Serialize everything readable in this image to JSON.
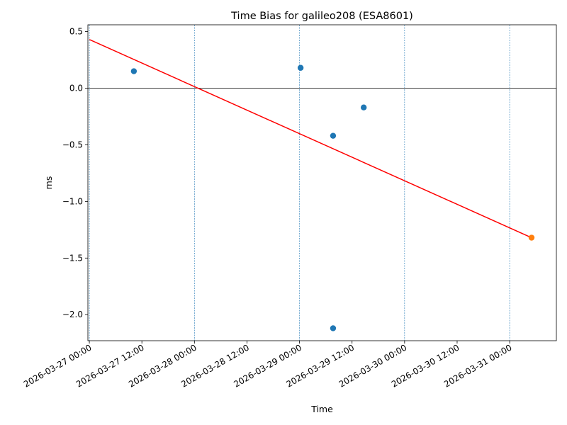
{
  "chart_data": {
    "type": "scatter",
    "title": "Time Bias for galileo208 (ESA8601)",
    "xlabel": "Time",
    "ylabel": "ms",
    "xlim": [
      "2026-03-26 23:40",
      "2026-03-31 10:40"
    ],
    "ylim": [
      -2.23,
      0.56
    ],
    "x_ticks": [
      "2026-03-27 00:00",
      "2026-03-27 12:00",
      "2026-03-28 00:00",
      "2026-03-28 12:00",
      "2026-03-29 00:00",
      "2026-03-29 12:00",
      "2026-03-30 00:00",
      "2026-03-30 12:00",
      "2026-03-31 00:00"
    ],
    "y_ticks": [
      0.5,
      0.0,
      -0.5,
      -1.0,
      -1.5,
      -2.0
    ],
    "y_tick_labels": [
      "0.5",
      "0.0",
      "−0.5",
      "−1.0",
      "−1.5",
      "−2.0"
    ],
    "day_lines": [
      "2026-03-27 00:00",
      "2026-03-28 00:00",
      "2026-03-29 00:00",
      "2026-03-30 00:00",
      "2026-03-31 00:00"
    ],
    "zero_line": 0,
    "series": [
      {
        "type": "scatter",
        "color": "#1f77b4",
        "points": [
          {
            "x": "2026-03-27 10:10",
            "y": 0.15
          },
          {
            "x": "2026-03-29 00:15",
            "y": 0.18
          },
          {
            "x": "2026-03-29 07:40",
            "y": -0.42
          },
          {
            "x": "2026-03-29 07:40",
            "y": -2.12
          },
          {
            "x": "2026-03-29 14:40",
            "y": -0.17
          }
        ]
      },
      {
        "type": "line",
        "color": "#ff0000",
        "points": [
          {
            "x": "2026-03-27 00:00",
            "y": 0.43
          },
          {
            "x": "2026-03-31 05:00",
            "y": -1.32
          }
        ]
      },
      {
        "type": "scatter",
        "color": "#ff7f0e",
        "points": [
          {
            "x": "2026-03-31 05:00",
            "y": -1.32
          }
        ]
      }
    ],
    "grid": false,
    "legend": "none"
  }
}
